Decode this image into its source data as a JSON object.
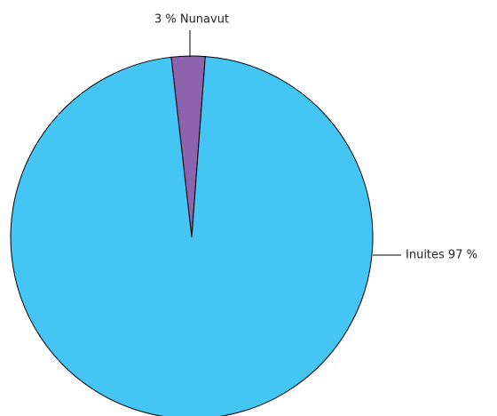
{
  "chart_data": {
    "type": "pie",
    "values": [
      3,
      97
    ],
    "value_labels": [
      "3 % Nunavut",
      "Inuites 97 %"
    ],
    "colors": [
      "#8e63ad",
      "#44c5f3"
    ]
  }
}
